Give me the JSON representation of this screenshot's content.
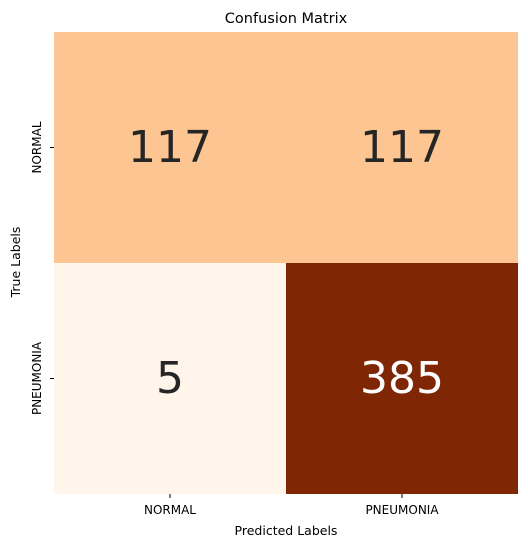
{
  "chart_data": {
    "type": "heatmap",
    "title": "Confusion Matrix",
    "xlabel": "Predicted Labels",
    "ylabel": "True Labels",
    "x_categories": [
      "NORMAL",
      "PNEUMONIA"
    ],
    "y_categories": [
      "NORMAL",
      "PNEUMONIA"
    ],
    "values": [
      [
        117,
        117
      ],
      [
        5,
        385
      ]
    ],
    "colormap": "Oranges",
    "cell_colors": [
      [
        "#fdc591",
        "#fdc591"
      ],
      [
        "#fff5eb",
        "#7f2704"
      ]
    ],
    "text_colors": [
      [
        "#262626",
        "#262626"
      ],
      [
        "#262626",
        "#ffffff"
      ]
    ],
    "colorbar": false
  }
}
